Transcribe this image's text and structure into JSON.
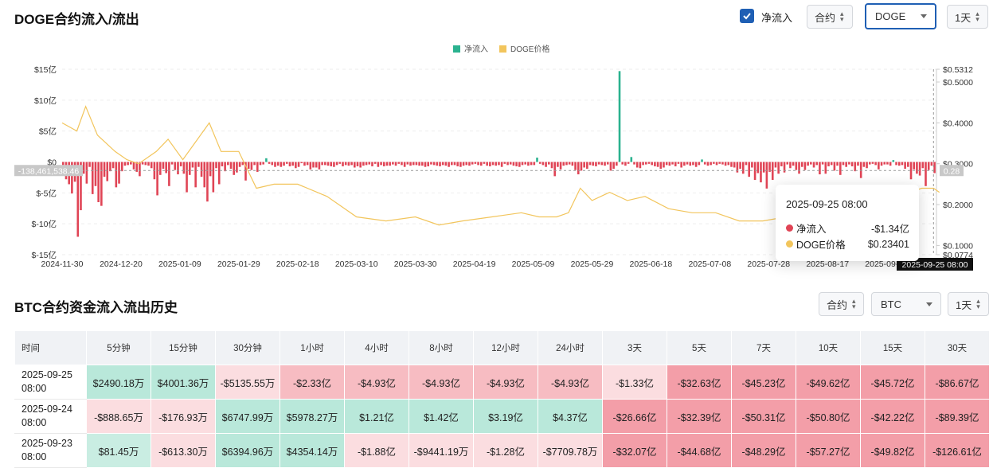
{
  "header": {
    "title": "DOGE合约流入/流出",
    "checkbox_label": "净流入",
    "mode_select": "合约",
    "coin_select": "DOGE",
    "interval_select": "1天"
  },
  "colors": {
    "inflow": "#2bb28f",
    "outflow": "#e04455",
    "price": "#f2c55c",
    "accent": "#1f5fb4"
  },
  "chart_data": {
    "type": "bar",
    "legend": [
      "净流入",
      "DOGE价格"
    ],
    "legend_position": "top-center",
    "left_ticks": [
      "$15亿",
      "$10亿",
      "$5亿",
      "$0",
      "$-5亿",
      "$-10亿",
      "$-15亿"
    ],
    "left_range": [
      -15,
      15
    ],
    "right_ticks": [
      "$0.5312",
      "$0.5000",
      "$0.4000",
      "$0.3000",
      "$0.2000",
      "$0.1000",
      "$0.0774"
    ],
    "right_range": [
      0.0774,
      0.5312
    ],
    "x_ticks": [
      "2024-11-30",
      "2024-12-20",
      "2025-01-09",
      "2025-01-29",
      "2025-02-18",
      "2025-03-10",
      "2025-03-30",
      "2025-04-19",
      "2025-05-09",
      "2025-05-29",
      "2025-06-18",
      "2025-07-08",
      "2025-07-28",
      "2025-08-17",
      "2025-09-05"
    ],
    "crosshair_left_label": "-138,461,538.46",
    "crosshair_right_label": "0.28",
    "crosshair_x_label": "2025-09-25 08:00",
    "net_flow": [
      -0.5,
      -2.8,
      -3.6,
      -5.1,
      -3.2,
      -12.1,
      -7.8,
      -1.9,
      -3.5,
      -0.8,
      -5.2,
      -3.9,
      -6.5,
      -7.1,
      -2.4,
      -3.1,
      -1.5,
      -1.0,
      -4.1,
      -3.5,
      -1.5,
      -0.6,
      -0.5,
      -0.4,
      -1.2,
      -1.6,
      -2.3,
      -0.4,
      -0.5,
      -0.6,
      -1.0,
      -2.8,
      -5.4,
      -2.1,
      -1.1,
      -1.8,
      -3.9,
      -0.4,
      -1.3,
      -2.0,
      -0.7,
      -1.9,
      -4.9,
      -2.1,
      -0.9,
      -4.1,
      -0.8,
      -2.4,
      -4.1,
      -6.4,
      -2.3,
      -4.9,
      -1.0,
      -3.6,
      -0.7,
      -1.5,
      -0.5,
      -1.1,
      -2.1,
      -1.7,
      -0.8,
      -0.5,
      -3.0,
      -1.1,
      -1.3,
      -0.5,
      -1.6,
      -0.5,
      -0.4,
      0.6,
      -0.3,
      -0.5,
      -0.8,
      -0.6,
      -0.8,
      -0.6,
      -0.3,
      -0.7,
      -0.6,
      -1.0,
      -0.8,
      -0.2,
      -0.6,
      -0.5,
      -1.2,
      -0.9,
      -0.9,
      -1.2,
      -0.5,
      -0.5,
      -0.6,
      -0.7,
      -0.8,
      -0.5,
      -0.3,
      -0.7,
      -0.5,
      -0.6,
      -0.5,
      -0.9,
      -0.7,
      -0.9,
      -0.6,
      -0.5,
      -0.4,
      -0.7,
      -0.3,
      -0.8,
      -0.5,
      -0.7,
      -0.6,
      -0.6,
      -0.4,
      -0.6,
      -0.3,
      -0.5,
      -0.8,
      -0.4,
      -0.6,
      -0.5,
      -0.5,
      -0.6,
      -0.6,
      -0.8,
      -0.7,
      -0.4,
      -0.5,
      -0.6,
      -0.7,
      -0.5,
      -0.6,
      -0.8,
      -0.5,
      -0.5,
      -0.7,
      -0.8,
      -0.6,
      -0.5,
      -0.6,
      -0.4,
      -0.3,
      -0.5,
      -0.6,
      -0.3,
      -0.6,
      -0.7,
      -0.5,
      -0.6,
      -0.5,
      -0.8,
      -0.3,
      -0.5,
      -0.4,
      -0.6,
      -0.7,
      -0.8,
      -0.5,
      -0.4,
      -0.6,
      -0.5,
      -0.5,
      0.7,
      -0.3,
      -0.5,
      -0.8,
      -0.4,
      -1.0,
      -2.3,
      -0.8,
      -1.2,
      -0.6,
      -0.5,
      -0.4,
      -0.6,
      -1.3,
      -2.0,
      -1.4,
      -0.9,
      -1.1,
      -0.5,
      -0.6,
      -0.7,
      -0.4,
      -0.5,
      -0.6,
      -0.4,
      -1.4,
      -1.1,
      -0.6,
      14.7,
      -0.4,
      -0.6,
      -0.3,
      0.8,
      -0.4,
      -0.9,
      -1.0,
      -0.5,
      -0.4,
      -0.3,
      -0.5,
      -0.7,
      -0.8,
      -1.1,
      -0.9,
      -0.5,
      -0.6,
      -0.4,
      -0.7,
      -0.3,
      -0.9,
      -0.6,
      -0.4,
      -0.6,
      -0.5,
      -0.8,
      -0.5,
      0.4,
      -0.4,
      -0.6,
      -0.5,
      -0.3,
      -0.5,
      -0.3,
      -0.4,
      -0.6,
      -0.5,
      -0.8,
      -0.9,
      -1.7,
      -1.1,
      -1.9,
      -0.5,
      -2.4,
      -0.9,
      -2.9,
      -1.8,
      -3.3,
      -1.7,
      -4.3,
      -1.6,
      -2.9,
      -0.9,
      -1.9,
      -0.7,
      -1.7,
      -0.4,
      -1.0,
      -0.6,
      -1.3,
      -1.9,
      -0.8,
      -1.3,
      -0.6,
      -0.4,
      -0.9,
      -0.5,
      -2.0,
      -0.4,
      -1.9,
      -0.7,
      -0.5,
      -1.4,
      -0.6,
      -2.1,
      -0.5,
      -0.8,
      -0.4,
      -0.7,
      -1.5,
      -0.6,
      -2.6,
      -0.8,
      -1.0,
      -0.4,
      -0.3,
      -0.5,
      -1.2,
      -0.6,
      -0.4,
      -0.4,
      -0.6,
      0.3,
      -0.5,
      -0.6,
      -0.5,
      -1.1,
      -0.8,
      -2.8,
      -1.2,
      -1.9,
      -2.2,
      -1.0,
      -3.9,
      -1.3,
      -0.6,
      -1.8
    ],
    "price_keypoints": [
      [
        0,
        0.4
      ],
      [
        5,
        0.38
      ],
      [
        8,
        0.44
      ],
      [
        12,
        0.37
      ],
      [
        18,
        0.33
      ],
      [
        22,
        0.31
      ],
      [
        26,
        0.3
      ],
      [
        32,
        0.33
      ],
      [
        36,
        0.36
      ],
      [
        41,
        0.31
      ],
      [
        46,
        0.36
      ],
      [
        50,
        0.4
      ],
      [
        54,
        0.33
      ],
      [
        60,
        0.33
      ],
      [
        66,
        0.24
      ],
      [
        72,
        0.25
      ],
      [
        80,
        0.25
      ],
      [
        90,
        0.22
      ],
      [
        100,
        0.17
      ],
      [
        110,
        0.16
      ],
      [
        120,
        0.17
      ],
      [
        128,
        0.15
      ],
      [
        136,
        0.16
      ],
      [
        146,
        0.17
      ],
      [
        156,
        0.18
      ],
      [
        162,
        0.17
      ],
      [
        168,
        0.17
      ],
      [
        172,
        0.18
      ],
      [
        176,
        0.24
      ],
      [
        180,
        0.21
      ],
      [
        186,
        0.23
      ],
      [
        192,
        0.21
      ],
      [
        198,
        0.22
      ],
      [
        206,
        0.19
      ],
      [
        214,
        0.18
      ],
      [
        222,
        0.18
      ],
      [
        230,
        0.16
      ],
      [
        238,
        0.16
      ],
      [
        246,
        0.17
      ],
      [
        252,
        0.19
      ],
      [
        258,
        0.21
      ],
      [
        264,
        0.24
      ],
      [
        270,
        0.22
      ],
      [
        276,
        0.23
      ],
      [
        282,
        0.22
      ],
      [
        288,
        0.23
      ],
      [
        292,
        0.24
      ],
      [
        296,
        0.24
      ],
      [
        298,
        0.23
      ]
    ],
    "tooltip": {
      "date": "2025-09-25 08:00",
      "rows": [
        {
          "label": "净流入",
          "value": "-$1.34亿"
        },
        {
          "label": "DOGE价格",
          "value": "$0.23401"
        }
      ]
    }
  },
  "history": {
    "title": "BTC合约资金流入流出历史",
    "mode_select": "合约",
    "coin_select": "BTC",
    "interval_select": "1天",
    "columns": [
      "时间",
      "5分钟",
      "15分钟",
      "30分钟",
      "1小时",
      "4小时",
      "8小时",
      "12小时",
      "24小时",
      "3天",
      "5天",
      "7天",
      "10天",
      "15天",
      "30天"
    ],
    "rows": [
      {
        "date": "2025-09-25",
        "time": "08:00",
        "cells": [
          [
            "$2490.18万",
            "g1"
          ],
          [
            "$4001.36万",
            "g1"
          ],
          [
            "-$5135.55万",
            "r1"
          ],
          [
            "-$2.33亿",
            "r2"
          ],
          [
            "-$4.93亿",
            "r2"
          ],
          [
            "-$4.93亿",
            "r2"
          ],
          [
            "-$4.93亿",
            "r2"
          ],
          [
            "-$4.93亿",
            "r2"
          ],
          [
            "-$1.33亿",
            "r1"
          ],
          [
            "-$32.63亿",
            "r3"
          ],
          [
            "-$45.23亿",
            "r3"
          ],
          [
            "-$49.62亿",
            "r3"
          ],
          [
            "-$45.72亿",
            "r3"
          ],
          [
            "-$86.67亿",
            "r3"
          ]
        ]
      },
      {
        "date": "2025-09-24",
        "time": "08:00",
        "cells": [
          [
            "-$888.65万",
            "r1"
          ],
          [
            "-$176.93万",
            "r1"
          ],
          [
            "$6747.99万",
            "g1"
          ],
          [
            "$5978.27万",
            "g1"
          ],
          [
            "$1.21亿",
            "g1"
          ],
          [
            "$1.42亿",
            "g1"
          ],
          [
            "$3.19亿",
            "g1"
          ],
          [
            "$4.37亿",
            "g1"
          ],
          [
            "-$26.66亿",
            "r3"
          ],
          [
            "-$32.39亿",
            "r3"
          ],
          [
            "-$50.31亿",
            "r3"
          ],
          [
            "-$50.80亿",
            "r3"
          ],
          [
            "-$42.22亿",
            "r3"
          ],
          [
            "-$89.39亿",
            "r3"
          ]
        ]
      },
      {
        "date": "2025-09-23",
        "time": "08:00",
        "cells": [
          [
            "$81.45万",
            "g2"
          ],
          [
            "-$613.30万",
            "r1"
          ],
          [
            "$6394.96万",
            "g1"
          ],
          [
            "$4354.14万",
            "g1"
          ],
          [
            "-$1.88亿",
            "r1"
          ],
          [
            "-$9441.19万",
            "r1"
          ],
          [
            "-$1.28亿",
            "r1"
          ],
          [
            "-$7709.78万",
            "r1"
          ],
          [
            "-$32.07亿",
            "r3"
          ],
          [
            "-$44.68亿",
            "r3"
          ],
          [
            "-$48.29亿",
            "r3"
          ],
          [
            "-$57.27亿",
            "r3"
          ],
          [
            "-$49.82亿",
            "r3"
          ],
          [
            "-$126.61亿",
            "r3"
          ]
        ]
      }
    ]
  }
}
